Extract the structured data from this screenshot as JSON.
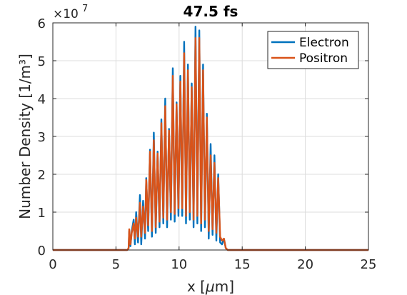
{
  "chart_data": {
    "type": "line",
    "title": "47.5 fs",
    "xlabel": "x [μm]",
    "ylabel": "Number Density [1/m³]",
    "y_multiplier": "×10",
    "y_multiplier_exp": "7",
    "xlim": [
      0,
      25
    ],
    "ylim": [
      0,
      6
    ],
    "x_ticks": [
      "0",
      "5",
      "10",
      "15",
      "20",
      "25"
    ],
    "y_ticks": [
      "0",
      "1",
      "2",
      "3",
      "4",
      "5",
      "6"
    ],
    "grid": true,
    "legend_position": "top-right",
    "series": [
      {
        "name": "Electron",
        "color": "#0072BD",
        "x": [
          0,
          5.9,
          6.0,
          6.05,
          6.15,
          6.25,
          6.4,
          6.5,
          6.6,
          6.75,
          6.9,
          7.0,
          7.15,
          7.3,
          7.4,
          7.55,
          7.7,
          7.85,
          8.0,
          8.15,
          8.3,
          8.45,
          8.6,
          8.75,
          8.9,
          9.05,
          9.2,
          9.35,
          9.5,
          9.65,
          9.8,
          9.95,
          10.1,
          10.25,
          10.4,
          10.55,
          10.7,
          10.85,
          11.0,
          11.15,
          11.3,
          11.45,
          11.6,
          11.75,
          11.9,
          12.05,
          12.2,
          12.35,
          12.5,
          12.65,
          12.8,
          12.95,
          13.1,
          13.25,
          13.4,
          13.55,
          13.7,
          13.85,
          14.0,
          25
        ],
        "values": [
          0,
          0,
          0.05,
          0.5,
          0.1,
          0.5,
          0.8,
          0.15,
          1.0,
          0.2,
          1.45,
          0.15,
          1.3,
          0.3,
          1.9,
          0.5,
          2.65,
          0.35,
          3.1,
          0.45,
          2.6,
          0.6,
          3.45,
          0.7,
          4.0,
          0.6,
          3.2,
          0.8,
          4.8,
          0.75,
          3.9,
          0.9,
          4.6,
          0.9,
          5.5,
          0.7,
          4.9,
          0.8,
          4.4,
          0.6,
          5.9,
          0.7,
          5.8,
          0.5,
          4.9,
          0.6,
          3.6,
          0.3,
          2.8,
          0.4,
          2.5,
          0.25,
          2.0,
          0.2,
          0.15,
          0.3,
          0.05,
          0,
          0,
          0
        ]
      },
      {
        "name": "Positron",
        "color": "#D95319",
        "x": [
          0,
          5.9,
          6.0,
          6.05,
          6.15,
          6.25,
          6.4,
          6.5,
          6.6,
          6.75,
          6.9,
          7.0,
          7.15,
          7.3,
          7.4,
          7.55,
          7.7,
          7.85,
          8.0,
          8.15,
          8.3,
          8.45,
          8.6,
          8.75,
          8.9,
          9.05,
          9.2,
          9.35,
          9.5,
          9.65,
          9.8,
          9.95,
          10.1,
          10.25,
          10.4,
          10.55,
          10.7,
          10.85,
          11.0,
          11.15,
          11.3,
          11.45,
          11.6,
          11.75,
          11.9,
          12.05,
          12.2,
          12.35,
          12.5,
          12.65,
          12.8,
          12.95,
          13.1,
          13.25,
          13.4,
          13.55,
          13.7,
          13.85,
          14.0,
          25
        ],
        "values": [
          0,
          0,
          0.05,
          0.55,
          0.15,
          0.45,
          0.7,
          0.3,
          0.85,
          0.35,
          1.25,
          0.35,
          1.15,
          0.45,
          1.85,
          0.65,
          2.6,
          0.5,
          2.9,
          0.6,
          2.55,
          0.75,
          3.35,
          0.85,
          3.8,
          0.8,
          3.15,
          1.0,
          4.6,
          0.95,
          3.85,
          1.1,
          4.45,
          1.1,
          5.2,
          0.9,
          4.75,
          1.0,
          4.3,
          0.8,
          5.6,
          0.9,
          5.6,
          0.7,
          4.75,
          0.8,
          3.5,
          0.5,
          2.5,
          0.55,
          2.3,
          0.45,
          1.9,
          0.35,
          0.25,
          0.3,
          0.05,
          0,
          0,
          0
        ]
      }
    ]
  }
}
